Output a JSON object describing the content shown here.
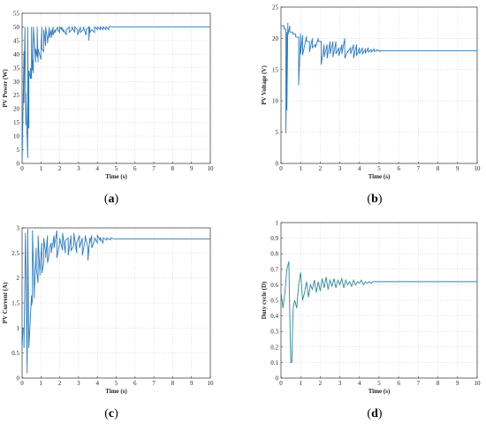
{
  "chart_data": [
    {
      "type": "line",
      "panel_label": "a",
      "xlabel": "Time (s)",
      "ylabel": "PV Power (W)",
      "xlim": [
        0,
        10
      ],
      "ylim": [
        0,
        55
      ],
      "xticks": [
        0,
        1,
        2,
        3,
        4,
        5,
        6,
        7,
        8,
        9,
        10
      ],
      "yticks": [
        0,
        5,
        10,
        15,
        20,
        25,
        30,
        35,
        40,
        45,
        50,
        55
      ],
      "grid": "dotted",
      "line_color": "#2a7bc4",
      "series": [
        {
          "x": [
            0,
            0.05,
            0.1,
            0.1,
            0.15,
            0.2,
            0.2,
            0.25,
            0.3,
            0.3,
            0.33,
            0.36,
            0.36,
            0.45,
            0.45,
            0.5,
            0.5,
            0.55,
            0.55,
            0.6,
            0.6,
            0.72,
            0.72,
            0.8,
            0.8,
            0.85,
            0.85,
            1.0,
            1.0,
            1.05,
            1.05,
            1.15,
            1.15,
            1.25,
            1.25,
            1.35,
            1.35,
            1.45,
            1.45,
            1.55,
            1.55,
            1.65,
            1.65,
            1.75,
            1.75,
            1.9,
            1.9,
            2.0,
            2.0,
            2.1,
            2.1,
            2.2,
            2.2,
            2.35,
            2.35,
            2.5,
            2.5,
            2.65,
            2.65,
            2.8,
            2.8,
            2.95,
            2.95,
            3.1,
            3.1,
            3.25,
            3.25,
            3.4,
            3.4,
            3.55,
            3.55,
            3.6,
            3.6,
            3.7,
            3.7,
            3.85,
            3.85,
            4.0,
            4.0,
            4.15,
            4.15,
            4.3,
            4.3,
            4.45,
            4.45,
            4.6,
            4.6,
            10
          ],
          "y": [
            0,
            20,
            41,
            22,
            50,
            14,
            26,
            13,
            2,
            50,
            13,
            13,
            34,
            31,
            35,
            31,
            50,
            34,
            38,
            33,
            50,
            37,
            42,
            39,
            50,
            37,
            42,
            38,
            40,
            50,
            42,
            41,
            49,
            43,
            50,
            45,
            44,
            50,
            46,
            49,
            46,
            50,
            47,
            49,
            48,
            50,
            49,
            48,
            50,
            49,
            50,
            48,
            49,
            47,
            49,
            50,
            48,
            49,
            50,
            48,
            50,
            49,
            47,
            50,
            48,
            49,
            50,
            47,
            49,
            50,
            45,
            50,
            48,
            49,
            49,
            48,
            50,
            49,
            50,
            49,
            50,
            49,
            50,
            49,
            50,
            49,
            50,
            50
          ]
        }
      ]
    },
    {
      "type": "line",
      "panel_label": "b",
      "xlabel": "Time (s)",
      "ylabel": "PV Voltage (V)",
      "xlim": [
        0,
        10
      ],
      "ylim": [
        0,
        25
      ],
      "xticks": [
        0,
        1,
        2,
        3,
        4,
        5,
        6,
        7,
        8,
        9,
        10
      ],
      "yticks": [
        0,
        5,
        10,
        15,
        20,
        25
      ],
      "grid": "dotted",
      "line_color": "#2a7bc4",
      "series": [
        {
          "x": [
            0,
            0.15,
            0.15,
            0.25,
            0.25,
            0.3,
            0.3,
            0.35,
            0.35,
            0.45,
            0.45,
            0.6,
            0.6,
            0.75,
            0.75,
            0.9,
            0.9,
            1.0,
            1.0,
            1.1,
            1.1,
            1.3,
            1.3,
            1.45,
            1.45,
            1.6,
            1.6,
            1.75,
            1.75,
            1.9,
            1.9,
            2.05,
            2.05,
            2.2,
            2.2,
            2.35,
            2.35,
            2.5,
            2.5,
            2.65,
            2.65,
            2.8,
            2.8,
            2.95,
            2.95,
            3.1,
            3.1,
            3.25,
            3.25,
            3.4,
            3.4,
            3.55,
            3.55,
            3.7,
            3.7,
            3.85,
            3.85,
            4.0,
            4.0,
            4.15,
            4.15,
            4.3,
            4.3,
            4.45,
            4.45,
            4.6,
            4.6,
            4.75,
            4.75,
            4.9,
            4.9,
            5.05,
            5.05,
            5.2,
            5.2,
            10
          ],
          "y": [
            22,
            22,
            21.5,
            21.5,
            4.8,
            21,
            8.5,
            22.5,
            20.5,
            22,
            21,
            21,
            20.7,
            20.7,
            20.2,
            20.2,
            12.5,
            20.8,
            17.5,
            20.5,
            17.3,
            20.3,
            19.5,
            19.5,
            17.8,
            20,
            18.5,
            19,
            18.5,
            20,
            19.5,
            19.5,
            15.8,
            19,
            17,
            19,
            16.8,
            19.5,
            17.5,
            19.5,
            17,
            19.5,
            17.5,
            18.5,
            17.2,
            19,
            17.5,
            20,
            16.8,
            18,
            17.8,
            18.5,
            17.5,
            19,
            16.8,
            19,
            17.2,
            18.5,
            17.5,
            18.5,
            17.5,
            18.3,
            17.6,
            18.5,
            17.8,
            18.2,
            17.8,
            18.3,
            17.9,
            18,
            18.2,
            17.9,
            18,
            18,
            18,
            18
          ]
        }
      ]
    },
    {
      "type": "line",
      "panel_label": "c",
      "xlabel": "Time (s)",
      "ylabel": "PV Current (A)",
      "xlim": [
        0,
        10
      ],
      "ylim": [
        0,
        3
      ],
      "xticks": [
        0,
        1,
        2,
        3,
        4,
        5,
        6,
        7,
        8,
        9,
        10
      ],
      "yticks": [
        0,
        0.5,
        1,
        1.5,
        2,
        2.5,
        3
      ],
      "grid": "dotted",
      "line_color": "#2a7bc4",
      "series": [
        {
          "x": [
            0,
            0.05,
            0.1,
            0.1,
            0.18,
            0.2,
            0.2,
            0.27,
            0.3,
            0.3,
            0.36,
            0.36,
            0.5,
            0.5,
            0.55,
            0.55,
            0.65,
            0.65,
            0.75,
            0.75,
            0.85,
            0.85,
            0.95,
            0.95,
            1.05,
            1.05,
            1.15,
            1.15,
            1.25,
            1.25,
            1.35,
            1.35,
            1.45,
            1.45,
            1.55,
            1.55,
            1.7,
            1.7,
            1.85,
            1.85,
            2.0,
            2.0,
            2.15,
            2.15,
            2.3,
            2.3,
            2.45,
            2.45,
            2.6,
            2.6,
            2.75,
            2.75,
            2.9,
            2.9,
            3.05,
            3.05,
            3.2,
            3.2,
            3.35,
            3.35,
            3.5,
            3.5,
            3.6,
            3.6,
            3.7,
            3.7,
            3.85,
            3.85,
            4.0,
            4.0,
            4.15,
            4.15,
            4.3,
            4.3,
            4.5,
            4.5,
            4.7,
            4.7,
            4.9,
            4.9,
            10
          ],
          "y": [
            0.6,
            1.0,
            1.0,
            0.6,
            2.9,
            2.3,
            2.3,
            0.1,
            2.98,
            2.98,
            0.6,
            0.6,
            1.65,
            1.45,
            1.55,
            2.95,
            1.6,
            1.75,
            2.6,
            2.2,
            1.9,
            2.85,
            2.05,
            2.15,
            2.7,
            2.1,
            2.3,
            2.8,
            2.5,
            2.4,
            2.85,
            2.3,
            2.5,
            2.6,
            2.7,
            2.5,
            2.85,
            2.6,
            2.95,
            2.4,
            2.7,
            2.8,
            2.55,
            2.9,
            2.5,
            2.75,
            2.8,
            2.45,
            2.85,
            2.55,
            2.65,
            2.9,
            2.5,
            2.7,
            2.85,
            2.6,
            2.8,
            2.45,
            2.75,
            2.85,
            2.6,
            2.35,
            2.8,
            2.7,
            2.85,
            2.6,
            2.75,
            2.8,
            2.7,
            2.85,
            2.75,
            2.8,
            2.7,
            2.8,
            2.76,
            2.8,
            2.76,
            2.8,
            2.78,
            2.78,
            2.78
          ]
        }
      ]
    },
    {
      "type": "line",
      "panel_label": "d",
      "xlabel": "Time (s)",
      "ylabel": "Duty cycle (D)",
      "xlim": [
        0,
        10
      ],
      "ylim": [
        0,
        1
      ],
      "xticks": [
        0,
        1,
        2,
        3,
        4,
        5,
        6,
        7,
        8,
        9,
        10
      ],
      "yticks": [
        0,
        0.1,
        0.2,
        0.3,
        0.4,
        0.5,
        0.6,
        0.7,
        0.8,
        0.9,
        1
      ],
      "grid": "dotted",
      "line_color": "#2a8a9e",
      "series": [
        {
          "x": [
            0,
            0.1,
            0.2,
            0.3,
            0.4,
            0.45,
            0.5,
            0.55,
            0.62,
            0.7,
            0.8,
            0.9,
            1.0,
            1.1,
            1.2,
            1.3,
            1.4,
            1.5,
            1.6,
            1.7,
            1.8,
            1.9,
            2.0,
            2.1,
            2.2,
            2.3,
            2.4,
            2.5,
            2.6,
            2.7,
            2.8,
            2.9,
            3.0,
            3.1,
            3.2,
            3.3,
            3.4,
            3.5,
            3.6,
            3.7,
            3.8,
            3.9,
            4.0,
            4.1,
            4.2,
            4.3,
            4.4,
            4.5,
            4.6,
            4.7,
            4.8,
            5.0,
            6,
            7,
            8,
            9,
            10
          ],
          "y": [
            0.55,
            0.45,
            0.55,
            0.7,
            0.75,
            0.4,
            0.1,
            0.1,
            0.45,
            0.5,
            0.45,
            0.6,
            0.68,
            0.5,
            0.55,
            0.62,
            0.52,
            0.6,
            0.57,
            0.63,
            0.55,
            0.62,
            0.56,
            0.64,
            0.58,
            0.65,
            0.57,
            0.63,
            0.59,
            0.64,
            0.58,
            0.63,
            0.6,
            0.64,
            0.58,
            0.63,
            0.6,
            0.62,
            0.59,
            0.63,
            0.6,
            0.62,
            0.61,
            0.63,
            0.6,
            0.62,
            0.61,
            0.62,
            0.61,
            0.62,
            0.62,
            0.62,
            0.62,
            0.62,
            0.62,
            0.62,
            0.62
          ]
        }
      ]
    }
  ]
}
